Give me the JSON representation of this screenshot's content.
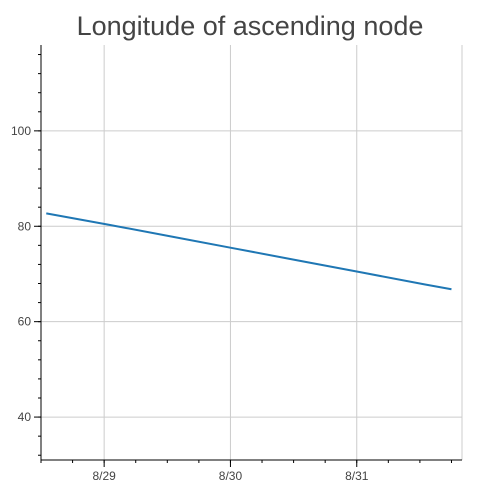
{
  "chart_data": {
    "type": "line",
    "title": "Longitude of ascending node",
    "xlabel": "",
    "ylabel": "",
    "x": [
      "2023-08-28 13:00",
      "2023-08-29 01:00",
      "2023-08-29 13:00",
      "2023-08-30 01:00",
      "2023-08-30 13:00",
      "2023-08-31 01:00",
      "2023-08-31 13:00",
      "2023-08-31 18:00"
    ],
    "series": [
      {
        "name": "",
        "color": "#1f77b4",
        "values": [
          82.7,
          80.3,
          77.8,
          75.3,
          72.8,
          70.3,
          67.8,
          66.8
        ]
      }
    ],
    "xlim": [
      "2023-08-28 12:00",
      "2023-08-31 20:00"
    ],
    "ylim": [
      31,
      118
    ],
    "x_ticks": [
      {
        "value": "2023-08-29",
        "label": "8/29"
      },
      {
        "value": "2023-08-30",
        "label": "8/30"
      },
      {
        "value": "2023-08-31",
        "label": "8/31"
      }
    ],
    "y_ticks": [
      {
        "value": 40,
        "label": "40"
      },
      {
        "value": 60,
        "label": "60"
      },
      {
        "value": 80,
        "label": "80"
      },
      {
        "value": 100,
        "label": "100"
      }
    ],
    "y_minor_step": 4,
    "grid": true,
    "grid_color": "#cccccc",
    "axis_color": "#000000",
    "text_color": "#444444",
    "legend": "none"
  }
}
